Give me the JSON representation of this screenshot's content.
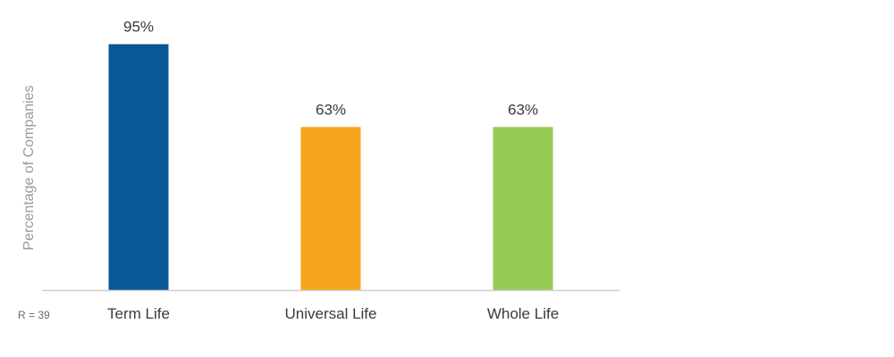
{
  "chart_data": {
    "type": "bar",
    "categories": [
      "Term Life",
      "Universal Life",
      "Whole Life"
    ],
    "values": [
      95,
      63,
      63
    ],
    "value_labels": [
      "95%",
      "63%",
      "63%"
    ],
    "colors": [
      "#0a5796",
      "#f7a51f",
      "#97c957"
    ],
    "ylabel": "Percentage of Companies",
    "xlabel": "",
    "ylim": [
      0,
      100
    ],
    "grid": false,
    "legend": "none",
    "note": "R = 39"
  }
}
